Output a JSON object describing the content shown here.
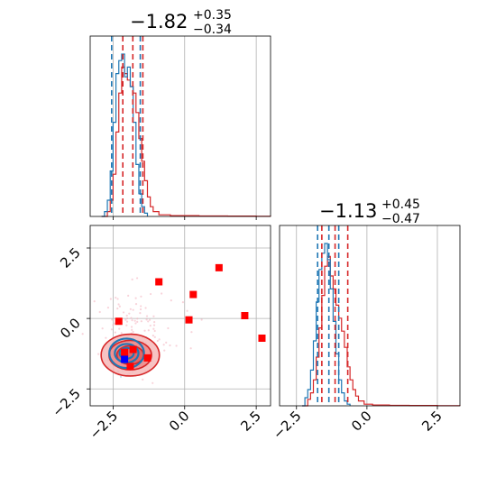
{
  "chart_data": {
    "type": "corner",
    "colors": {
      "blue": "#1f77b4",
      "red": "#d62728",
      "marker_red": "#ff0000",
      "marker_blue": "#0000ff",
      "grid": "#b0b0b0"
    },
    "panels": {
      "top_left": {
        "type": "histogram",
        "title": {
          "value": "−1.82",
          "plus": "+0.35",
          "minus": "−0.34"
        },
        "xlim": [
          -3.3,
          3.0
        ],
        "vlines_blue": [
          -2.55,
          -1.55
        ],
        "vlines_red": [
          -2.16,
          -1.81,
          -1.46
        ],
        "blue_hist": [
          [
            -2.9,
            0
          ],
          [
            -2.8,
            3
          ],
          [
            -2.7,
            10
          ],
          [
            -2.6,
            28
          ],
          [
            -2.5,
            58
          ],
          [
            -2.4,
            88
          ],
          [
            -2.3,
            96
          ],
          [
            -2.2,
            100
          ],
          [
            -2.1,
            86
          ],
          [
            -2.0,
            92
          ],
          [
            -1.9,
            80
          ],
          [
            -1.8,
            58
          ],
          [
            -1.7,
            32
          ],
          [
            -1.6,
            14
          ],
          [
            -1.5,
            6
          ],
          [
            -1.4,
            2
          ],
          [
            -1.3,
            0
          ]
        ],
        "red_hist": [
          [
            -2.9,
            0
          ],
          [
            -2.7,
            3
          ],
          [
            -2.6,
            10
          ],
          [
            -2.5,
            26
          ],
          [
            -2.4,
            52
          ],
          [
            -2.3,
            76
          ],
          [
            -2.2,
            92
          ],
          [
            -2.1,
            88
          ],
          [
            -2.0,
            84
          ],
          [
            -1.9,
            80
          ],
          [
            -1.8,
            76
          ],
          [
            -1.7,
            64
          ],
          [
            -1.6,
            48
          ],
          [
            -1.5,
            34
          ],
          [
            -1.4,
            22
          ],
          [
            -1.3,
            12
          ],
          [
            -1.2,
            6
          ],
          [
            -1.1,
            3
          ],
          [
            -0.9,
            1
          ],
          [
            -0.5,
            0.5
          ],
          [
            0.5,
            0.3
          ],
          [
            1.5,
            0.2
          ],
          [
            2.5,
            0.1
          ],
          [
            3.0,
            0
          ]
        ]
      },
      "bottom_left": {
        "type": "scatter_contour",
        "xlim": [
          -3.3,
          3.0
        ],
        "ylim": [
          -3.1,
          3.3
        ],
        "xticks": [
          -2.5,
          0.0,
          2.5
        ],
        "yticks": [
          -2.5,
          0.0,
          2.5
        ],
        "xtick_labels": [
          "−2.5",
          "0.0",
          "2.5"
        ],
        "ytick_labels": [
          "−2.5",
          "0.0",
          "2.5"
        ],
        "red_squares": [
          [
            -0.9,
            1.3
          ],
          [
            1.2,
            1.8
          ],
          [
            0.3,
            0.85
          ],
          [
            0.15,
            -0.05
          ],
          [
            2.1,
            0.1
          ],
          [
            2.7,
            -0.7
          ],
          [
            -2.3,
            -0.1
          ],
          [
            -1.8,
            -1.1
          ],
          [
            -1.3,
            -1.4
          ],
          [
            -1.9,
            -1.7
          ],
          [
            -2.1,
            -1.2
          ]
        ],
        "blue_squares": [
          [
            -2.1,
            -1.45
          ]
        ],
        "contour_center": [
          -1.9,
          -1.3
        ],
        "red_contour_levels": [
          [
            1.85,
            1.35
          ],
          [
            1.35,
            0.95
          ],
          [
            0.85,
            0.6
          ]
        ],
        "blue_contour_levels": [
          [
            1.1,
            0.95
          ],
          [
            0.75,
            0.6
          ],
          [
            0.45,
            0.35
          ]
        ]
      },
      "bottom_right": {
        "type": "histogram",
        "title": {
          "value": "−1.13",
          "plus": "+0.45",
          "minus": "−0.47"
        },
        "xlim": [
          -3.1,
          3.3
        ],
        "xticks": [
          -2.5,
          0.0,
          2.5
        ],
        "xtick_labels": [
          "−2.5",
          "0.0",
          "2.5"
        ],
        "vlines_blue": [
          -1.75,
          -1.35,
          -1.0
        ],
        "vlines_red": [
          -1.6,
          -1.13,
          -0.68
        ],
        "blue_hist": [
          [
            -2.3,
            0
          ],
          [
            -2.2,
            5
          ],
          [
            -2.1,
            10
          ],
          [
            -2.0,
            22
          ],
          [
            -1.9,
            40
          ],
          [
            -1.8,
            64
          ],
          [
            -1.7,
            84
          ],
          [
            -1.6,
            94
          ],
          [
            -1.5,
            100
          ],
          [
            -1.4,
            90
          ],
          [
            -1.3,
            72
          ],
          [
            -1.2,
            52
          ],
          [
            -1.1,
            32
          ],
          [
            -1.0,
            16
          ],
          [
            -0.9,
            8
          ],
          [
            -0.8,
            3
          ],
          [
            -0.7,
            1
          ],
          [
            -0.6,
            0
          ]
        ],
        "red_hist": [
          [
            -2.3,
            0
          ],
          [
            -2.1,
            4
          ],
          [
            -2.0,
            8
          ],
          [
            -1.9,
            16
          ],
          [
            -1.8,
            30
          ],
          [
            -1.7,
            48
          ],
          [
            -1.6,
            68
          ],
          [
            -1.5,
            86
          ],
          [
            -1.4,
            92
          ],
          [
            -1.3,
            80
          ],
          [
            -1.2,
            72
          ],
          [
            -1.1,
            62
          ],
          [
            -1.0,
            54
          ],
          [
            -0.9,
            46
          ],
          [
            -0.8,
            36
          ],
          [
            -0.7,
            24
          ],
          [
            -0.6,
            16
          ],
          [
            -0.5,
            10
          ],
          [
            -0.4,
            6
          ],
          [
            -0.3,
            3
          ],
          [
            -0.1,
            1
          ],
          [
            0.2,
            0.5
          ],
          [
            0.8,
            0.3
          ],
          [
            1.5,
            0.2
          ],
          [
            2.5,
            0.1
          ],
          [
            3.3,
            0
          ]
        ]
      }
    }
  }
}
